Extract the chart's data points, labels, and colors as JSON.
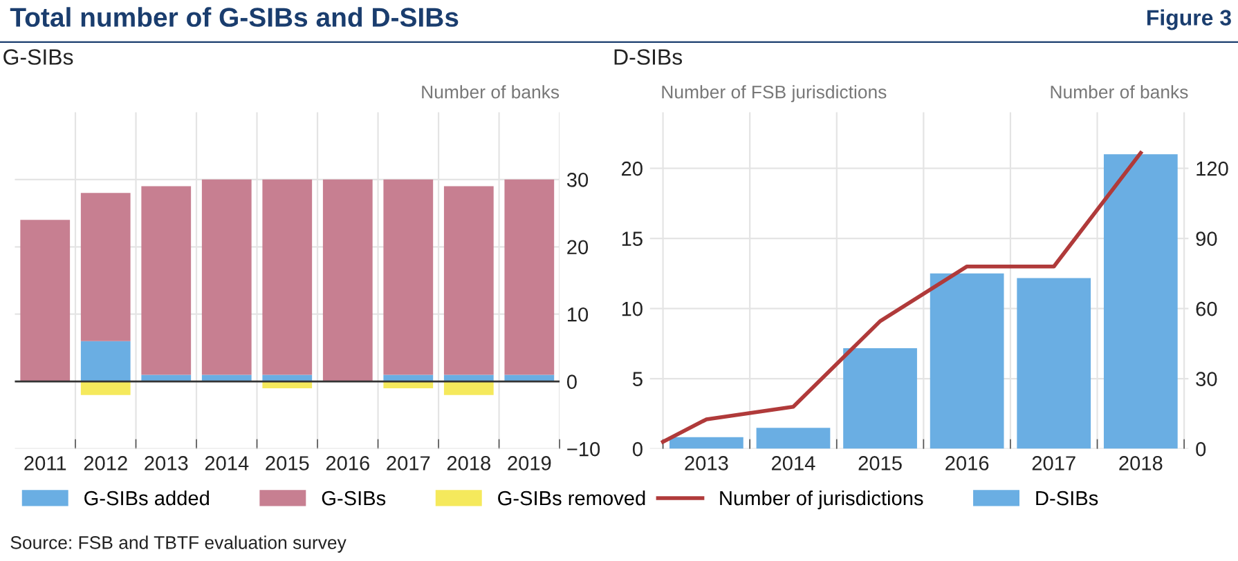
{
  "chart_data": [
    {
      "type": "bar",
      "title": "G-SIBs",
      "ylabel": "Number of banks",
      "stacked": true,
      "categories": [
        "2011",
        "2012",
        "2013",
        "2014",
        "2015",
        "2016",
        "2017",
        "2018",
        "2019"
      ],
      "series": [
        {
          "name": "G-SIBs added",
          "color": "#6aaee3",
          "values": [
            0,
            6,
            1,
            1,
            1,
            0,
            1,
            1,
            1
          ]
        },
        {
          "name": "G-SIBs",
          "color": "#c77f91",
          "values": [
            24,
            22,
            28,
            29,
            29,
            30,
            29,
            28,
            29
          ]
        },
        {
          "name": "G-SIBs removed",
          "color": "#f5e95c",
          "values": [
            0,
            -2,
            0,
            0,
            -1,
            0,
            -1,
            -2,
            0
          ]
        }
      ],
      "ylim": [
        -10,
        40
      ],
      "yticks": [
        {
          "value": -10,
          "label": "−10"
        },
        0,
        10,
        20,
        30
      ],
      "ref_lines": [
        {
          "axis": "y",
          "value": 0,
          "color": "#333333"
        }
      ],
      "grid": true,
      "legend": "bottom",
      "annotations": [
        "Total number of G-SIBs and D-SIBs",
        "Figure 3",
        "Source: FSB and TBTF evaluation survey"
      ]
    },
    {
      "type": "bar",
      "title": "D-SIBs",
      "ylabel": "Number of FSB jurisdictions",
      "y2label": "Number of banks",
      "x": [
        2013.5,
        2014.5,
        2015.5,
        2016.5,
        2017.5,
        2018.5
      ],
      "series": [
        {
          "name": "Number of jurisdictions",
          "type": "line",
          "color": "#b03a3a",
          "x": [
            2013,
            2013.5,
            2014.5,
            2015.5,
            2016.5,
            2017.5,
            2018.5
          ],
          "values": [
            0.5,
            2.1,
            3,
            9.1,
            13,
            13,
            21.1
          ]
        },
        {
          "name": "D-SIBs",
          "axis": "y2",
          "color": "#6aaee3",
          "values": [
            5,
            9,
            43,
            75,
            73,
            126
          ]
        }
      ],
      "xlim": [
        2012.85,
        2019.05
      ],
      "xticks": [
        {
          "value": 2013,
          "label": null
        },
        {
          "value": 2013.5,
          "label": "2013"
        },
        {
          "value": 2014,
          "label": null
        },
        {
          "value": 2014.5,
          "label": "2014"
        },
        {
          "value": 2015,
          "label": null
        },
        {
          "value": 2015.5,
          "label": "2015"
        },
        {
          "value": 2016,
          "label": null
        },
        {
          "value": 2016.5,
          "label": "2016"
        },
        {
          "value": 2017,
          "label": null
        },
        {
          "value": 2017.5,
          "label": "2017"
        },
        {
          "value": 2018,
          "label": null
        },
        {
          "value": 2018.5,
          "label": "2018"
        },
        {
          "value": 2019,
          "label": null
        }
      ],
      "ylim": [
        0,
        24
      ],
      "yticks": [
        0,
        5,
        10,
        15,
        20
      ],
      "y2lim": [
        0,
        144
      ],
      "y2ticks": [
        0,
        30,
        60,
        90,
        120
      ],
      "grid": true,
      "legend": "bottom"
    }
  ]
}
